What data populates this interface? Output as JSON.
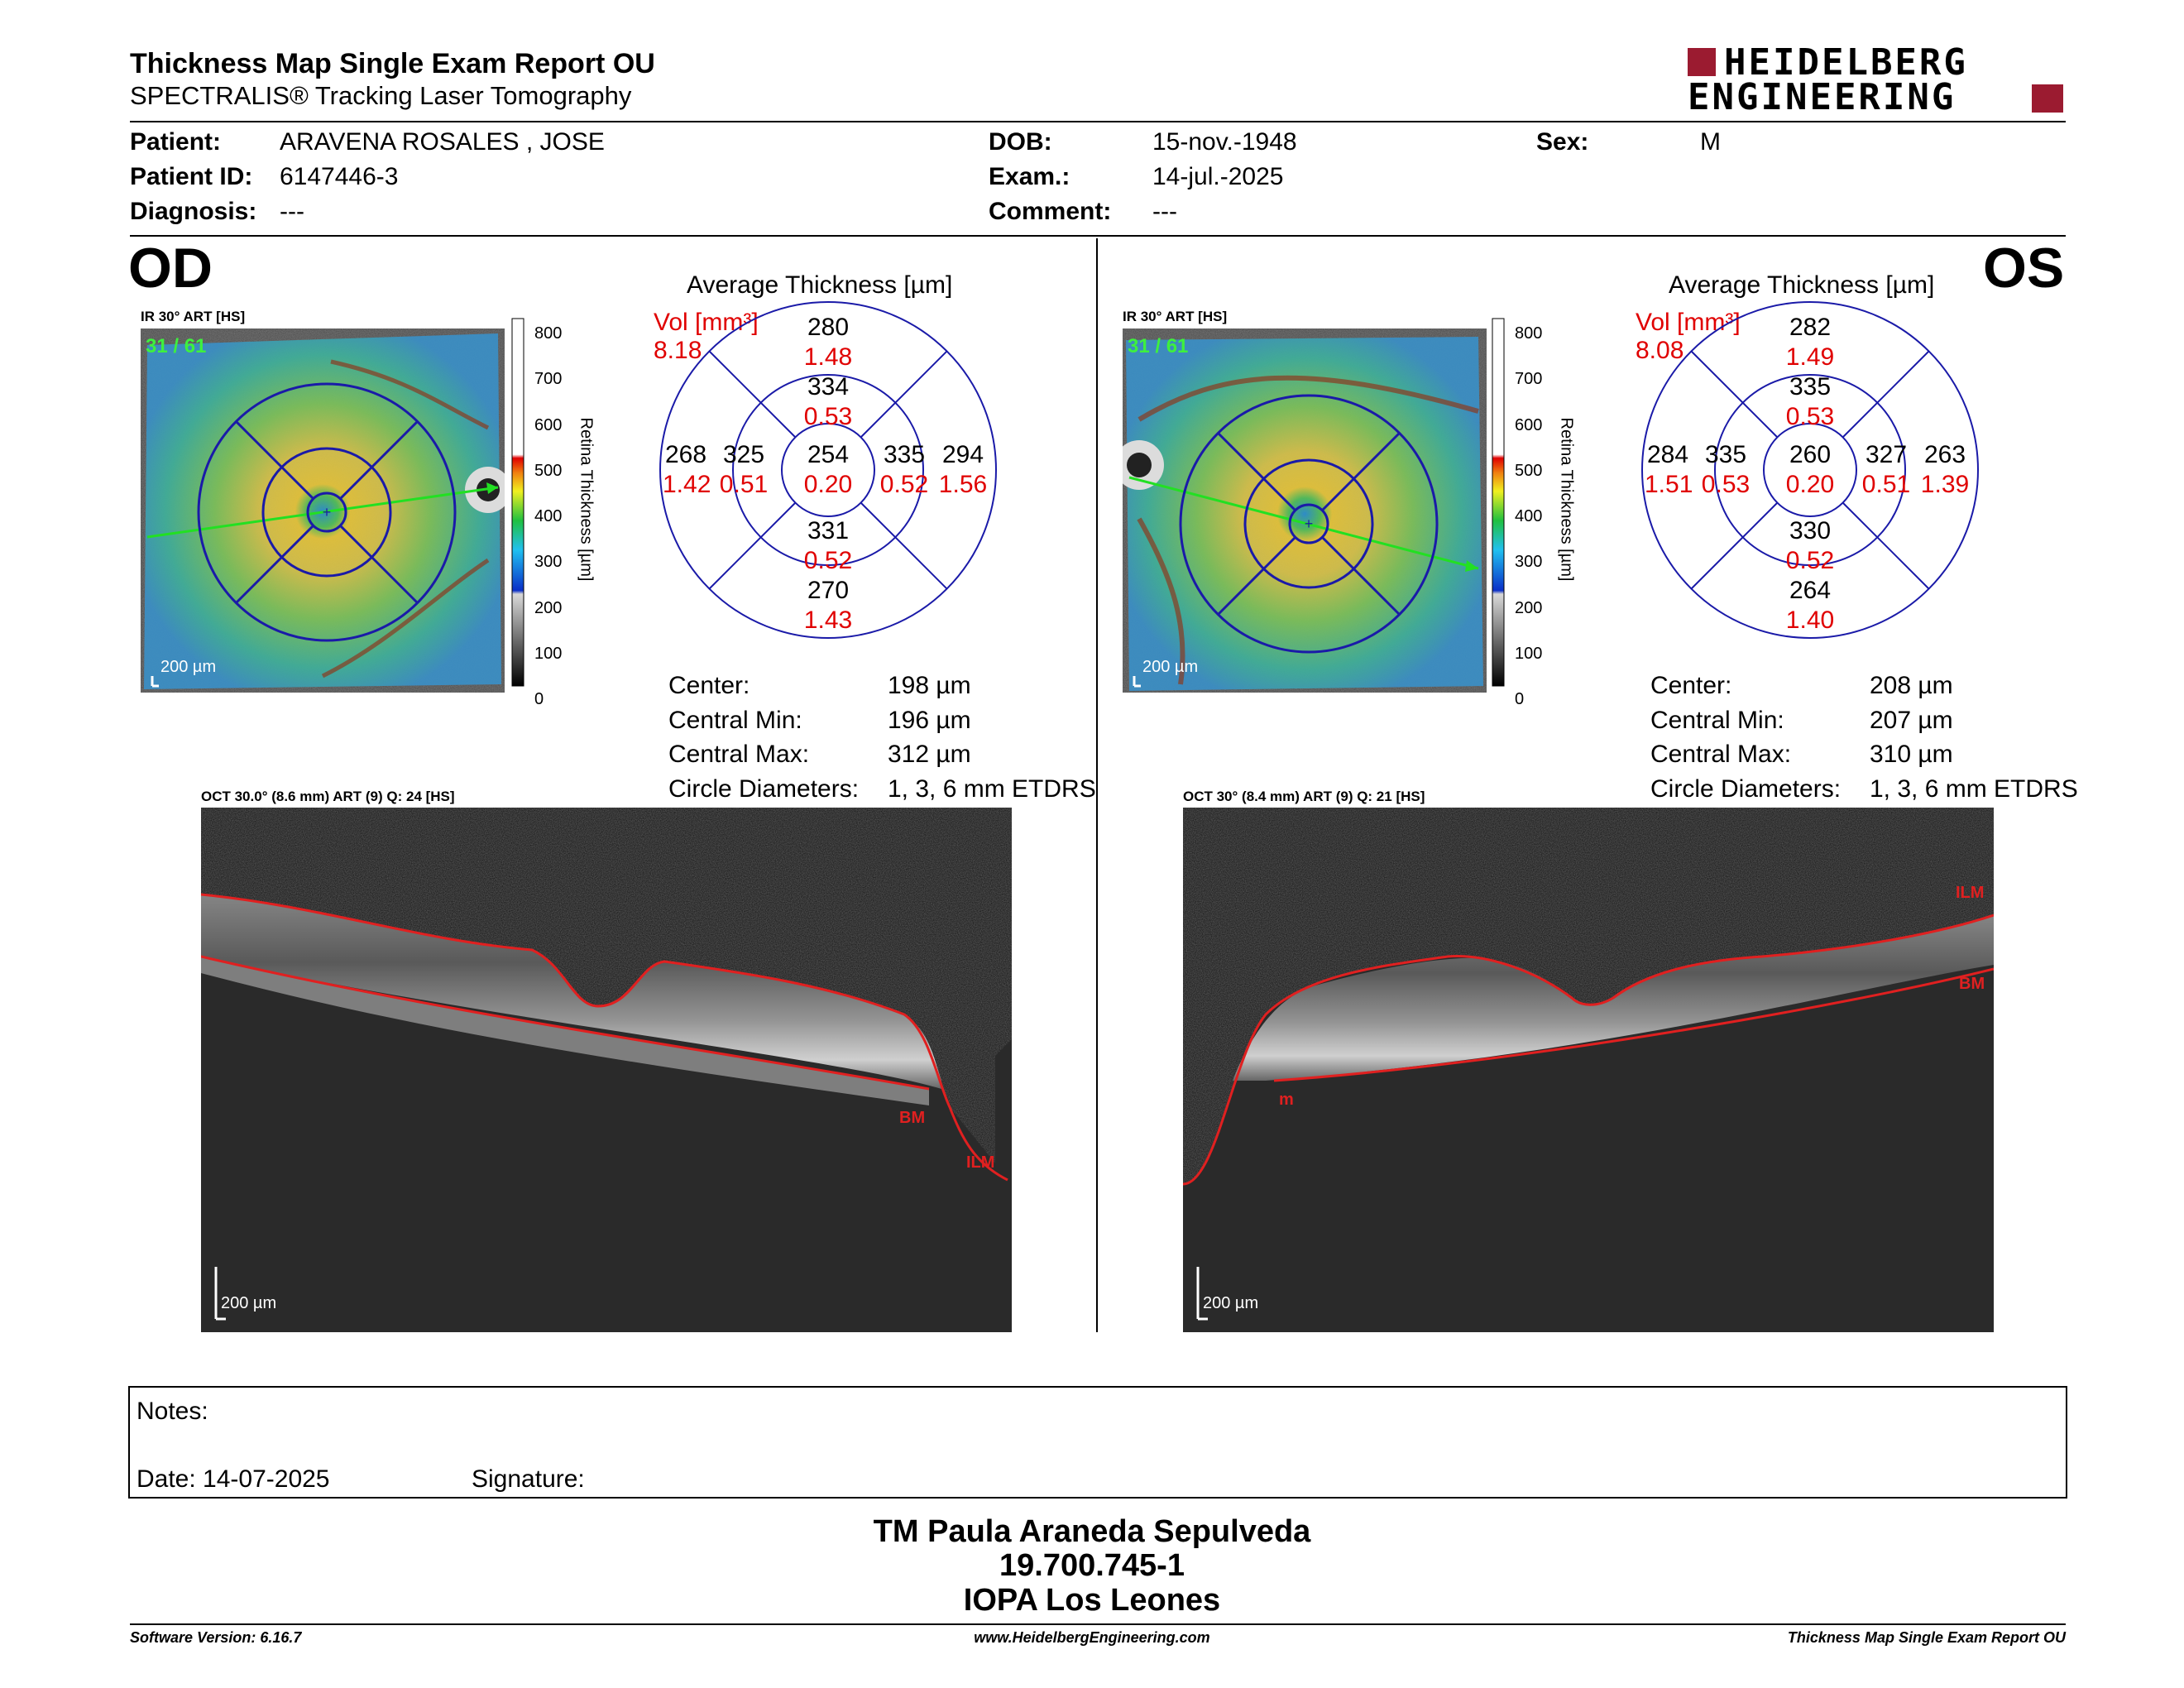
{
  "report": {
    "title": "Thickness Map Single Exam Report OU",
    "subtitle": "SPECTRALIS® Tracking Laser Tomography",
    "logo_line1": "HEIDELBERG",
    "logo_line2": "ENGINEERING",
    "brand_color": "#9b1b30"
  },
  "patient": {
    "patient_label": "Patient:",
    "patient_value": "ARAVENA ROSALES , JOSE",
    "id_label": "Patient ID:",
    "id_value": "6147446-3",
    "diagnosis_label": "Diagnosis:",
    "diagnosis_value": "---",
    "dob_label": "DOB:",
    "dob_value": "15-nov.-1948",
    "exam_label": "Exam.:",
    "exam_value": "14-jul.-2025",
    "comment_label": "Comment:",
    "comment_value": "---",
    "sex_label": "Sex:",
    "sex_value": "M"
  },
  "scale": {
    "ticks": [
      "800",
      "700",
      "600",
      "500",
      "400",
      "300",
      "200",
      "100",
      "0"
    ],
    "label": "Retina  Thickness [µm]"
  },
  "od": {
    "eye": "OD",
    "ir_title": "IR 30° ART [HS]",
    "frame_count": "31 / 61",
    "ir_scalebar": "200 µm",
    "avg_title": "Average Thickness [µm]",
    "vol_label": "Vol [mm³]",
    "vol_value": "8.18",
    "grid": {
      "sup_outer": "280",
      "sup_outer_vol": "1.48",
      "sup_inner": "334",
      "sup_inner_vol": "0.53",
      "temp_outer": "268",
      "temp_outer_vol": "1.42",
      "temp_inner": "325",
      "temp_inner_vol": "0.51",
      "center": "254",
      "center_vol": "0.20",
      "nasal_inner": "335",
      "nasal_inner_vol": "0.52",
      "nasal_outer": "294",
      "nasal_outer_vol": "1.56",
      "inf_inner": "331",
      "inf_inner_vol": "0.52",
      "inf_outer": "270",
      "inf_outer_vol": "1.43"
    },
    "stats": {
      "center_label": "Center:",
      "center_value": "198 µm",
      "min_label": "Central Min:",
      "min_value": "196 µm",
      "max_label": "Central Max:",
      "max_value": "312 µm",
      "diam_label": "Circle Diameters:",
      "diam_value": "1, 3, 6 mm ETDRS"
    },
    "oct_title": "OCT 30.0° (8.6 mm) ART (9) Q: 24 [HS]",
    "oct_scalebar": "200 µm",
    "label_bm": "BM",
    "label_ilm": "ILM"
  },
  "os": {
    "eye": "OS",
    "ir_title": "IR 30° ART [HS]",
    "frame_count": "31 / 61",
    "ir_scalebar": "200 µm",
    "avg_title": "Average Thickness [µm]",
    "vol_label": "Vol [mm³]",
    "vol_value": "8.08",
    "grid": {
      "sup_outer": "282",
      "sup_outer_vol": "1.49",
      "sup_inner": "335",
      "sup_inner_vol": "0.53",
      "temp_outer": "284",
      "temp_outer_vol": "1.51",
      "temp_inner": "335",
      "temp_inner_vol": "0.53",
      "center": "260",
      "center_vol": "0.20",
      "nasal_inner": "327",
      "nasal_inner_vol": "0.51",
      "nasal_outer": "263",
      "nasal_outer_vol": "1.39",
      "inf_inner": "330",
      "inf_inner_vol": "0.52",
      "inf_outer": "264",
      "inf_outer_vol": "1.40"
    },
    "stats": {
      "center_label": "Center:",
      "center_value": "208 µm",
      "min_label": "Central Min:",
      "min_value": "207 µm",
      "max_label": "Central Max:",
      "max_value": "310 µm",
      "diam_label": "Circle Diameters:",
      "diam_value": "1, 3, 6 mm ETDRS"
    },
    "oct_title": "OCT 30° (8.4 mm) ART (9) Q: 21 [HS]",
    "oct_scalebar": "200 µm",
    "label_ilm": "ILM",
    "label_bm": "BM",
    "label_m": "m"
  },
  "notes": {
    "notes_label": "Notes:",
    "date_label": "Date: 14-07-2025",
    "signature_label": "Signature:"
  },
  "signatory": {
    "name": "TM Paula Araneda Sepulveda",
    "id": "19.700.745-1",
    "org": "IOPA Los Leones"
  },
  "footer": {
    "software": "Software Version: 6.16.7",
    "website": "www.HeidelbergEngineering.com",
    "report_name": "Thickness Map Single Exam Report OU"
  }
}
